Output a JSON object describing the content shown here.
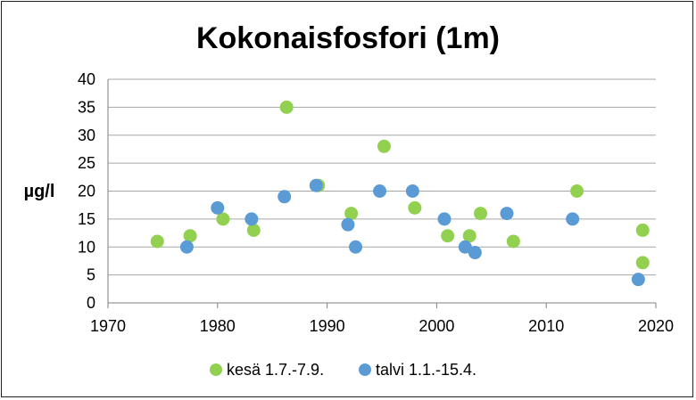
{
  "chart_data": {
    "type": "scatter",
    "title": "Kokonaisfosfori (1m)",
    "ylabel": "µg/l",
    "xlabel": "",
    "xlim": [
      1970,
      2020
    ],
    "ylim": [
      0,
      40
    ],
    "xticks": [
      1970,
      1980,
      1990,
      2000,
      2010,
      2020
    ],
    "yticks": [
      0,
      5,
      10,
      15,
      20,
      25,
      30,
      35,
      40
    ],
    "grid": true,
    "legend_position": "bottom",
    "series": [
      {
        "name": "kesä 1.7.-7.9.",
        "color": "#92D050",
        "points": [
          {
            "x": 1974.5,
            "y": 11
          },
          {
            "x": 1977.5,
            "y": 12
          },
          {
            "x": 1980.5,
            "y": 15
          },
          {
            "x": 1983.3,
            "y": 13
          },
          {
            "x": 1986.3,
            "y": 35
          },
          {
            "x": 1989.2,
            "y": 21
          },
          {
            "x": 1992.2,
            "y": 16
          },
          {
            "x": 1995.2,
            "y": 28
          },
          {
            "x": 1998.0,
            "y": 17
          },
          {
            "x": 2001.0,
            "y": 12
          },
          {
            "x": 2003.0,
            "y": 12
          },
          {
            "x": 2004.0,
            "y": 16
          },
          {
            "x": 2007.0,
            "y": 11
          },
          {
            "x": 2012.8,
            "y": 20
          },
          {
            "x": 2018.8,
            "y": 13
          },
          {
            "x": 2018.8,
            "y": 7.2
          }
        ]
      },
      {
        "name": "talvi 1.1.-15.4.",
        "color": "#5B9BD5",
        "points": [
          {
            "x": 1977.2,
            "y": 10
          },
          {
            "x": 1980.0,
            "y": 17
          },
          {
            "x": 1983.1,
            "y": 15
          },
          {
            "x": 1986.1,
            "y": 19
          },
          {
            "x": 1989.0,
            "y": 21
          },
          {
            "x": 1991.9,
            "y": 14
          },
          {
            "x": 1992.6,
            "y": 10
          },
          {
            "x": 1994.8,
            "y": 20
          },
          {
            "x": 1997.8,
            "y": 20
          },
          {
            "x": 2000.7,
            "y": 15
          },
          {
            "x": 2002.6,
            "y": 10
          },
          {
            "x": 2003.5,
            "y": 9
          },
          {
            "x": 2006.4,
            "y": 16
          },
          {
            "x": 2012.4,
            "y": 15
          },
          {
            "x": 2018.4,
            "y": 4.2
          }
        ]
      }
    ]
  }
}
